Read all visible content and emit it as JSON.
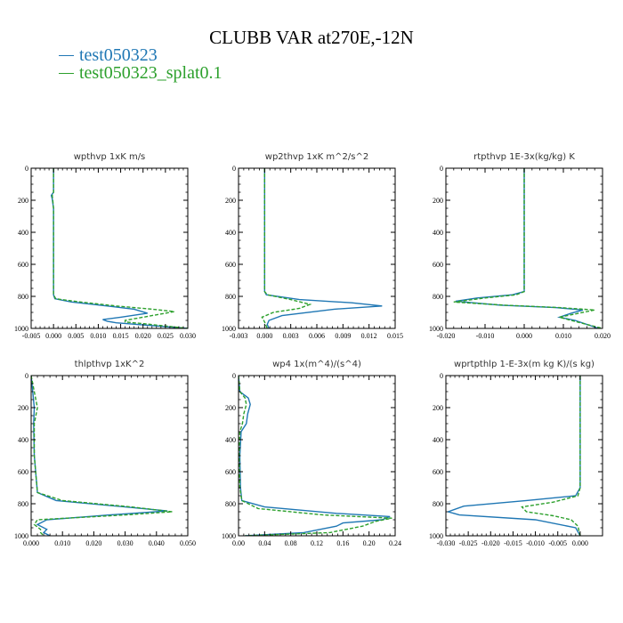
{
  "title": "CLUBB VAR at270E,-12N",
  "legend": [
    {
      "label": "test050323",
      "color": "#1f77b4"
    },
    {
      "label": "test050323_splat0.1",
      "color": "#2ca02c"
    }
  ],
  "chart_data": [
    {
      "type": "line",
      "title": "wpthvp  1xK m/s",
      "xlim": [
        -0.005,
        0.03
      ],
      "ylim": [
        0,
        1000
      ],
      "y_inverted": true,
      "xticks": [
        "-0.005",
        "0.000",
        "0.005",
        "0.010",
        "0.015",
        "0.020",
        "0.025",
        "0.030"
      ],
      "xtick_values": [
        -0.005,
        0.0,
        0.005,
        0.01,
        0.015,
        0.02,
        0.025,
        0.03
      ],
      "yticks": [
        "0",
        "200",
        "400",
        "600",
        "800",
        "1000"
      ],
      "ytick_values": [
        0,
        200,
        400,
        600,
        800,
        1000
      ],
      "series": [
        {
          "color": "#1f77b4",
          "dash": "solid",
          "x": [
            0.0,
            0.0,
            -0.0005,
            -0.0003,
            0.0,
            0.0,
            0.0003,
            0.004,
            0.012,
            0.018,
            0.021,
            0.015,
            0.011,
            0.012,
            0.014,
            0.03
          ],
          "y": [
            0,
            150,
            170,
            190,
            250,
            790,
            815,
            835,
            860,
            880,
            905,
            930,
            945,
            955,
            965,
            1000
          ]
        },
        {
          "color": "#2ca02c",
          "dash": "dashed",
          "x": [
            0.0,
            0.0,
            -0.0003,
            -0.0002,
            0.0,
            0.0,
            0.0005,
            0.006,
            0.014,
            0.022,
            0.027,
            0.02,
            0.016,
            0.016,
            0.02,
            0.03
          ],
          "y": [
            0,
            150,
            170,
            190,
            250,
            790,
            815,
            835,
            860,
            880,
            895,
            930,
            950,
            960,
            970,
            1000
          ]
        }
      ]
    },
    {
      "type": "line",
      "title": "wp2thvp  1xK m^2/s^2",
      "xlim": [
        -0.003,
        0.015
      ],
      "ylim": [
        0,
        1000
      ],
      "y_inverted": true,
      "xticks": [
        "-0.003",
        "0.000",
        "0.003",
        "0.006",
        "0.009",
        "0.012",
        "0.015"
      ],
      "xtick_values": [
        -0.003,
        0.0,
        0.003,
        0.006,
        0.009,
        0.012,
        0.015
      ],
      "yticks": [
        "0",
        "200",
        "400",
        "600",
        "800",
        "1000"
      ],
      "ytick_values": [
        0,
        200,
        400,
        600,
        800,
        1000
      ],
      "series": [
        {
          "color": "#1f77b4",
          "dash": "solid",
          "x": [
            0.0,
            0.0,
            0.0002,
            0.004,
            0.01,
            0.0135,
            0.008,
            0.002,
            0.0005,
            0.0003,
            0.0005
          ],
          "y": [
            0,
            770,
            790,
            820,
            840,
            860,
            880,
            920,
            950,
            975,
            1000
          ]
        },
        {
          "color": "#2ca02c",
          "dash": "dashed",
          "x": [
            0.0,
            0.0,
            0.0003,
            0.003,
            0.0052,
            0.004,
            0.001,
            -0.0003,
            0.0,
            0.0003
          ],
          "y": [
            0,
            770,
            790,
            820,
            850,
            875,
            900,
            930,
            960,
            1000
          ]
        }
      ]
    },
    {
      "type": "line",
      "title": "rtpthvp  1E-3x(kg/kg) K",
      "xlim": [
        -0.02,
        0.02
      ],
      "ylim": [
        0,
        1000
      ],
      "y_inverted": true,
      "xticks": [
        "-0.020",
        "-0.010",
        "0.000",
        "0.010",
        "0.020"
      ],
      "xtick_values": [
        -0.02,
        -0.01,
        0.0,
        0.01,
        0.02
      ],
      "yticks": [
        "0",
        "200",
        "400",
        "600",
        "800",
        "1000"
      ],
      "ytick_values": [
        0,
        200,
        400,
        600,
        800,
        1000
      ],
      "series": [
        {
          "color": "#1f77b4",
          "dash": "solid",
          "x": [
            0.0,
            0.0,
            -0.003,
            -0.012,
            -0.0175,
            -0.006,
            0.008,
            0.015,
            0.012,
            0.009,
            0.013,
            0.019
          ],
          "y": [
            0,
            770,
            790,
            810,
            830,
            855,
            870,
            885,
            905,
            930,
            950,
            1000
          ]
        },
        {
          "color": "#2ca02c",
          "dash": "dashed",
          "x": [
            0.0,
            0.0,
            -0.002,
            -0.01,
            -0.018,
            -0.005,
            0.009,
            0.018,
            0.014,
            0.009,
            0.012,
            0.02
          ],
          "y": [
            0,
            770,
            790,
            810,
            835,
            855,
            870,
            885,
            905,
            930,
            950,
            1000
          ]
        }
      ]
    },
    {
      "type": "line",
      "title": "thlpthvp  1xK^2",
      "xlim": [
        0.0,
        0.05
      ],
      "ylim": [
        0,
        1000
      ],
      "y_inverted": true,
      "xticks": [
        "0.000",
        "0.010",
        "0.020",
        "0.030",
        "0.040",
        "0.050"
      ],
      "xtick_values": [
        0.0,
        0.01,
        0.02,
        0.03,
        0.04,
        0.05
      ],
      "yticks": [
        "0",
        "200",
        "400",
        "600",
        "800",
        "1000"
      ],
      "ytick_values": [
        0,
        200,
        400,
        600,
        800,
        1000
      ],
      "series": [
        {
          "color": "#1f77b4",
          "dash": "solid",
          "x": [
            0.0,
            0.0005,
            0.001,
            0.0008,
            0.001,
            0.002,
            0.008,
            0.03,
            0.0435,
            0.025,
            0.005,
            0.002,
            0.005,
            0.004,
            0.006
          ],
          "y": [
            0,
            100,
            200,
            300,
            500,
            730,
            780,
            820,
            845,
            870,
            900,
            930,
            960,
            980,
            1000
          ]
        },
        {
          "color": "#2ca02c",
          "dash": "dashed",
          "x": [
            0.0,
            0.001,
            0.002,
            0.001,
            0.001,
            0.002,
            0.01,
            0.032,
            0.045,
            0.03,
            0.002,
            0.001,
            0.003,
            0.003,
            0.004
          ],
          "y": [
            0,
            100,
            200,
            300,
            500,
            730,
            780,
            820,
            850,
            870,
            900,
            930,
            960,
            980,
            1000
          ]
        }
      ]
    },
    {
      "type": "line",
      "title": "wp4  1x(m^4)/(s^4)",
      "xlim": [
        0.0,
        0.24
      ],
      "ylim": [
        0,
        1000
      ],
      "y_inverted": true,
      "xticks": [
        "0.00",
        "0.04",
        "0.08",
        "0.12",
        "0.16",
        "0.20",
        "0.24"
      ],
      "xtick_values": [
        0.0,
        0.04,
        0.08,
        0.12,
        0.16,
        0.2,
        0.24
      ],
      "yticks": [
        "0",
        "200",
        "400",
        "600",
        "800",
        "1000"
      ],
      "ytick_values": [
        0,
        200,
        400,
        600,
        800,
        1000
      ],
      "series": [
        {
          "color": "#1f77b4",
          "dash": "solid",
          "x": [
            0.0,
            0.002,
            0.015,
            0.018,
            0.014,
            0.012,
            0.004,
            0.002,
            0.003,
            0.005,
            0.04,
            0.15,
            0.232,
            0.22,
            0.16,
            0.15,
            0.1,
            0.01
          ],
          "y": [
            0,
            100,
            140,
            180,
            240,
            300,
            350,
            500,
            700,
            780,
            820,
            860,
            880,
            900,
            920,
            940,
            980,
            1000
          ]
        },
        {
          "color": "#2ca02c",
          "dash": "dashed",
          "x": [
            0.0,
            0.002,
            0.01,
            0.012,
            0.008,
            0.006,
            0.002,
            0.001,
            0.002,
            0.005,
            0.03,
            0.13,
            0.235,
            0.21,
            0.19,
            0.14,
            0.01
          ],
          "y": [
            0,
            100,
            140,
            180,
            240,
            300,
            350,
            500,
            700,
            780,
            830,
            870,
            890,
            910,
            940,
            980,
            1000
          ]
        }
      ]
    },
    {
      "type": "line",
      "title": "wprtpthlp  1-E-3x(m kg K)/(s kg)",
      "xlim": [
        -0.03,
        0.005
      ],
      "ylim": [
        0,
        1000
      ],
      "y_inverted": true,
      "xticks": [
        "-0.030",
        "-0.025",
        "-0.020",
        "-0.015",
        "-0.010",
        "-0.005",
        "0.000"
      ],
      "xtick_values": [
        -0.03,
        -0.025,
        -0.02,
        -0.015,
        -0.01,
        -0.005,
        0.0
      ],
      "yticks": [
        "0",
        "200",
        "400",
        "600",
        "800",
        "1000"
      ],
      "ytick_values": [
        0,
        200,
        400,
        600,
        800,
        1000
      ],
      "series": [
        {
          "color": "#1f77b4",
          "dash": "solid",
          "x": [
            0.0,
            0.0,
            -0.001,
            -0.012,
            -0.026,
            -0.0295,
            -0.027,
            -0.01,
            -0.001,
            0.0
          ],
          "y": [
            0,
            700,
            750,
            780,
            815,
            850,
            870,
            900,
            950,
            1000
          ]
        },
        {
          "color": "#2ca02c",
          "dash": "dashed",
          "x": [
            0.0,
            0.0,
            -0.0005,
            -0.006,
            -0.013,
            -0.012,
            -0.006,
            -0.002,
            -0.0005,
            0.0
          ],
          "y": [
            0,
            700,
            750,
            790,
            820,
            850,
            875,
            900,
            940,
            1000
          ]
        }
      ]
    }
  ]
}
